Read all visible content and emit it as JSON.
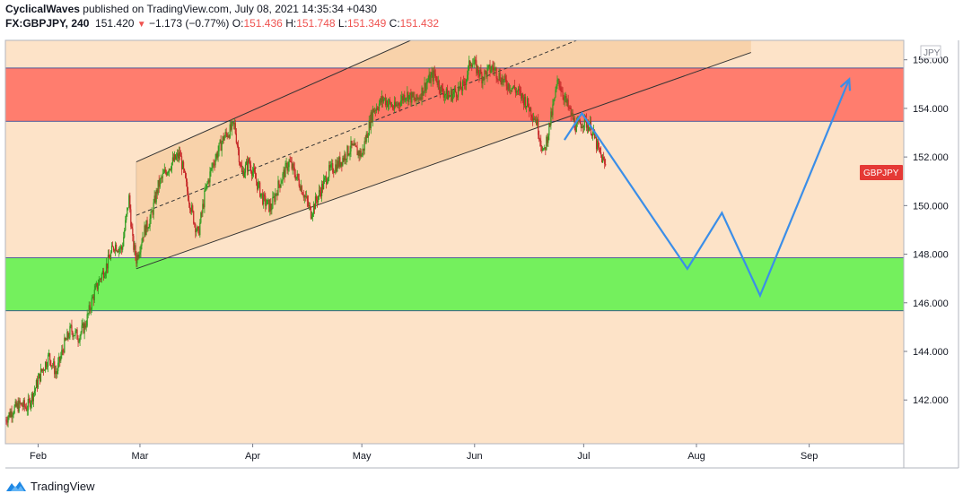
{
  "header": {
    "line1": {
      "author": "CyclicalWaves",
      "rest": " published on TradingView.com, July 08, 2021 14:35:34 +0430"
    },
    "line2": {
      "symbol": "FX:GBPJPY, 240",
      "last": "151.420",
      "change": "−1.173 (−0.77%)",
      "o_label": "O:",
      "o_value": "151.436",
      "h_label": "H:",
      "h_value": "151.748",
      "l_label": "L:",
      "l_value": "151.349",
      "c_label": "C:",
      "c_value": "151.432"
    }
  },
  "footer": {
    "brand": "TradingView"
  },
  "colors": {
    "background": "#fde3c8",
    "up_candle": "#2e9d1e",
    "down_candle": "#c62828",
    "red_zone": "#ff6b5e",
    "green_zone": "#74f05d",
    "channel_fill": "#f7cfa4",
    "forecast_line": "#3b8ee8",
    "price_tag": "#e53935"
  },
  "chart_data": {
    "type": "candlestick",
    "symbol": "GBPJPY",
    "currency_label": "JPY",
    "price_tag": "GBPJPY",
    "ylim": [
      140.2,
      156.8
    ],
    "y_ticks": [
      "142.000",
      "144.000",
      "146.000",
      "148.000",
      "150.000",
      "152.000",
      "154.000",
      "156.000"
    ],
    "x_ticks": [
      "Feb",
      "Mar",
      "Apr",
      "May",
      "Jun",
      "Jul",
      "Aug",
      "Sep"
    ],
    "grid": false,
    "x_range_days": [
      0,
      247
    ],
    "month_days": {
      "Feb": 9,
      "Mar": 37,
      "Apr": 68,
      "May": 98,
      "Jun": 129,
      "Jul": 159,
      "Aug": 190,
      "Sep": 221
    },
    "price_path": [
      [
        0,
        141.2
      ],
      [
        2,
        141.6
      ],
      [
        4,
        141.8
      ],
      [
        6,
        141.7
      ],
      [
        8,
        142.4
      ],
      [
        10,
        143.2
      ],
      [
        12,
        143.8
      ],
      [
        14,
        143.1
      ],
      [
        16,
        144.2
      ],
      [
        18,
        144.9
      ],
      [
        20,
        144.6
      ],
      [
        22,
        145.1
      ],
      [
        24,
        146.2
      ],
      [
        26,
        147.0
      ],
      [
        28,
        147.6
      ],
      [
        30,
        148.4
      ],
      [
        32,
        148.2
      ],
      [
        34,
        150.3
      ],
      [
        35,
        148.5
      ],
      [
        36,
        147.8
      ],
      [
        38,
        148.9
      ],
      [
        40,
        149.5
      ],
      [
        42,
        150.8
      ],
      [
        44,
        151.4
      ],
      [
        46,
        151.8
      ],
      [
        48,
        152.1
      ],
      [
        50,
        150.6
      ],
      [
        52,
        149.3
      ],
      [
        53,
        148.8
      ],
      [
        55,
        150.6
      ],
      [
        57,
        151.7
      ],
      [
        60,
        152.8
      ],
      [
        63,
        153.3
      ],
      [
        65,
        151.3
      ],
      [
        67,
        151.8
      ],
      [
        69,
        151.0
      ],
      [
        71,
        150.2
      ],
      [
        73,
        149.9
      ],
      [
        75,
        150.8
      ],
      [
        78,
        151.8
      ],
      [
        81,
        150.9
      ],
      [
        84,
        149.7
      ],
      [
        86,
        150.4
      ],
      [
        89,
        151.4
      ],
      [
        92,
        151.8
      ],
      [
        95,
        152.4
      ],
      [
        98,
        152.1
      ],
      [
        101,
        153.9
      ],
      [
        104,
        154.4
      ],
      [
        107,
        154.0
      ],
      [
        110,
        154.6
      ],
      [
        113,
        154.3
      ],
      [
        116,
        155.1
      ],
      [
        118,
        155.4
      ],
      [
        120,
        154.7
      ],
      [
        122,
        154.5
      ],
      [
        124,
        154.7
      ],
      [
        126,
        154.9
      ],
      [
        128,
        156.0
      ],
      [
        131,
        155.3
      ],
      [
        134,
        155.7
      ],
      [
        137,
        155.1
      ],
      [
        140,
        154.8
      ],
      [
        143,
        154.3
      ],
      [
        146,
        153.5
      ],
      [
        148,
        152.1
      ],
      [
        150,
        153.6
      ],
      [
        152,
        155.2
      ],
      [
        154,
        154.3
      ],
      [
        157,
        153.2
      ],
      [
        159,
        153.5
      ],
      [
        161,
        153.2
      ],
      [
        163,
        152.3
      ],
      [
        165,
        151.6
      ]
    ],
    "zones": [
      {
        "name": "resistance",
        "from": 153.47,
        "to": 155.66
      },
      {
        "name": "support",
        "from": 145.67,
        "to": 147.85
      }
    ],
    "channel": {
      "start_day": 36,
      "end_day": 205,
      "lower_start": 147.4,
      "lower_end": 156.3,
      "upper_start": 151.8,
      "upper_end": 163.0
    },
    "forecast_path": [
      [
        153.7,
        152.7
      ],
      [
        158.5,
        153.8
      ],
      [
        187.5,
        147.4
      ],
      [
        197.0,
        149.7
      ],
      [
        207.5,
        146.3
      ],
      [
        232.0,
        155.2
      ]
    ]
  }
}
